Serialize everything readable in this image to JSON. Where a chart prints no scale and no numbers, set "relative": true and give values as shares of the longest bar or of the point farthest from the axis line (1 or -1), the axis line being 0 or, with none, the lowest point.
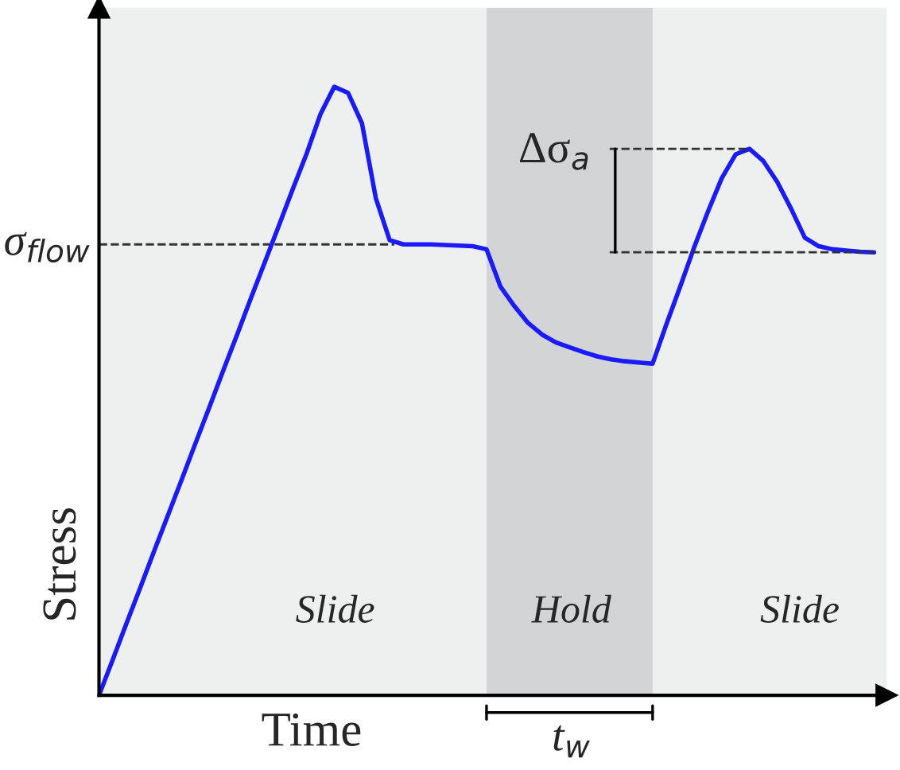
{
  "chart_data": {
    "type": "line",
    "relative": true,
    "xlabel": "Time",
    "ylabel": "Stress",
    "categories": [
      null,
      null,
      null,
      null,
      null,
      null,
      null,
      null,
      null,
      null,
      null,
      null,
      null,
      null,
      null,
      null,
      null,
      null,
      null,
      null,
      null,
      null,
      null,
      null,
      null,
      null,
      null,
      null,
      null,
      null,
      null,
      null,
      null,
      null,
      null,
      null,
      null,
      null,
      null,
      null,
      null,
      null,
      null,
      null,
      null,
      null,
      null,
      null,
      null,
      null,
      null,
      null,
      null,
      null,
      null,
      null,
      null
    ],
    "series": [
      {
        "color": "#1a1aff",
        "values": [
          0,
          0.059,
          0.119,
          0.178,
          0.238,
          0.297,
          0.356,
          0.416,
          0.475,
          0.535,
          0.594,
          0.654,
          0.713,
          0.772,
          0.832,
          0.89,
          0.955,
          1.0,
          0.99,
          0.94,
          0.817,
          0.748,
          0.741,
          0.741,
          0.741,
          0.74,
          0.739,
          0.738,
          0.733,
          0.672,
          0.64,
          0.612,
          0.593,
          0.58,
          0.572,
          0.564,
          0.557,
          0.552,
          0.549,
          0.547,
          0.545,
          0.61,
          0.672,
          0.736,
          0.795,
          0.85,
          0.889,
          0.898,
          0.878,
          0.844,
          0.8,
          0.752,
          0.738,
          0.733,
          0.731,
          0.729,
          0.728
        ]
      }
    ],
    "ref_lines": [
      {
        "axis": "y",
        "value": 0.741,
        "label": "σ$_{flow}$",
        "color": "#333333",
        "line_style": "dashed"
      }
    ],
    "annotations": [
      "Slide",
      "Hold",
      "Slide",
      "Δσ$_{a}$",
      "t$_{w}$"
    ],
    "grid": false,
    "legend": false,
    "marker": "none",
    "line_style": "solid"
  }
}
